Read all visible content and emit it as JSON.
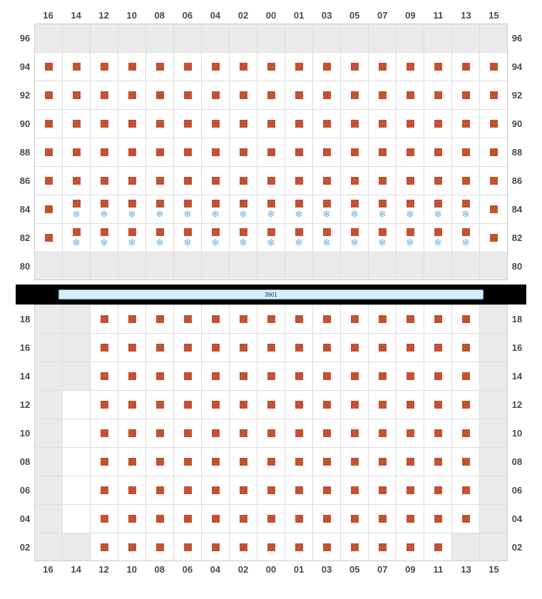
{
  "columns": [
    "16",
    "14",
    "12",
    "10",
    "08",
    "06",
    "04",
    "02",
    "00",
    "01",
    "03",
    "05",
    "07",
    "09",
    "11",
    "13",
    "15"
  ],
  "colors": {
    "seat": "#c15232",
    "snowflake": "#6fb6e6",
    "blank_bg": "#eaeaea",
    "cell_bg": "#ffffff",
    "grid_line": "#dddddd",
    "border": "#cccccc",
    "label_text": "#4a4a4a",
    "separator_bg": "#000000",
    "sep_bar_bg": "#d4eef9",
    "sep_bar_border": "#7ab8d9"
  },
  "typography": {
    "label_fontsize": 13,
    "label_weight": 600
  },
  "separator_label": "3901",
  "upper": {
    "rows": [
      "96",
      "94",
      "92",
      "90",
      "88",
      "86",
      "84",
      "82",
      "80"
    ],
    "cells": {
      "96": [
        "b",
        "b",
        "b",
        "b",
        "b",
        "b",
        "b",
        "b",
        "b",
        "b",
        "b",
        "b",
        "b",
        "b",
        "b",
        "b",
        "b"
      ],
      "94": [
        "s",
        "s",
        "s",
        "s",
        "s",
        "s",
        "s",
        "s",
        "s",
        "s",
        "s",
        "s",
        "s",
        "s",
        "s",
        "s",
        "s"
      ],
      "92": [
        "s",
        "s",
        "s",
        "s",
        "s",
        "s",
        "s",
        "s",
        "s",
        "s",
        "s",
        "s",
        "s",
        "s",
        "s",
        "s",
        "s"
      ],
      "90": [
        "s",
        "s",
        "s",
        "s",
        "s",
        "s",
        "s",
        "s",
        "s",
        "s",
        "s",
        "s",
        "s",
        "s",
        "s",
        "s",
        "s"
      ],
      "88": [
        "s",
        "s",
        "s",
        "s",
        "s",
        "s",
        "s",
        "s",
        "s",
        "s",
        "s",
        "s",
        "s",
        "s",
        "s",
        "s",
        "s"
      ],
      "86": [
        "s",
        "s",
        "s",
        "s",
        "s",
        "s",
        "s",
        "s",
        "s",
        "s",
        "s",
        "s",
        "s",
        "s",
        "s",
        "s",
        "s"
      ],
      "84": [
        "s",
        "sf",
        "sf",
        "sf",
        "sf",
        "sf",
        "sf",
        "sf",
        "sf",
        "sf",
        "sf",
        "sf",
        "sf",
        "sf",
        "sf",
        "sf",
        "s"
      ],
      "82": [
        "s",
        "sf",
        "sf",
        "sf",
        "sf",
        "sf",
        "sf",
        "sf",
        "sf",
        "sf",
        "sf",
        "sf",
        "sf",
        "sf",
        "sf",
        "sf",
        "s"
      ],
      "80": [
        "b",
        "b",
        "b",
        "b",
        "b",
        "b",
        "b",
        "b",
        "b",
        "b",
        "b",
        "b",
        "b",
        "b",
        "b",
        "b",
        "b"
      ]
    }
  },
  "lower": {
    "rows": [
      "18",
      "16",
      "14",
      "12",
      "10",
      "08",
      "06",
      "04",
      "02"
    ],
    "cells": {
      "18": [
        "b",
        "b",
        "s",
        "s",
        "s",
        "s",
        "s",
        "s",
        "s",
        "s",
        "s",
        "s",
        "s",
        "s",
        "s",
        "s",
        "b"
      ],
      "16": [
        "b",
        "b",
        "s",
        "s",
        "s",
        "s",
        "s",
        "s",
        "s",
        "s",
        "s",
        "s",
        "s",
        "s",
        "s",
        "s",
        "b"
      ],
      "14": [
        "b",
        "b",
        "s",
        "s",
        "s",
        "s",
        "s",
        "s",
        "s",
        "s",
        "s",
        "s",
        "s",
        "s",
        "s",
        "s",
        "b"
      ],
      "12": [
        "b",
        "e",
        "s",
        "s",
        "s",
        "s",
        "s",
        "s",
        "s",
        "s",
        "s",
        "s",
        "s",
        "s",
        "s",
        "s",
        "b"
      ],
      "10": [
        "b",
        "e",
        "s",
        "s",
        "s",
        "s",
        "s",
        "s",
        "s",
        "s",
        "s",
        "s",
        "s",
        "s",
        "s",
        "s",
        "b"
      ],
      "08": [
        "b",
        "e",
        "s",
        "s",
        "s",
        "s",
        "s",
        "s",
        "s",
        "s",
        "s",
        "s",
        "s",
        "s",
        "s",
        "s",
        "b"
      ],
      "06": [
        "b",
        "e",
        "s",
        "s",
        "s",
        "s",
        "s",
        "s",
        "s",
        "s",
        "s",
        "s",
        "s",
        "s",
        "s",
        "s",
        "b"
      ],
      "04": [
        "b",
        "e",
        "s",
        "s",
        "s",
        "s",
        "s",
        "s",
        "s",
        "s",
        "s",
        "s",
        "s",
        "s",
        "s",
        "s",
        "b"
      ],
      "02": [
        "b",
        "b",
        "s",
        "s",
        "s",
        "s",
        "s",
        "s",
        "s",
        "s",
        "s",
        "s",
        "s",
        "s",
        "s",
        "b",
        "b"
      ]
    }
  },
  "legend_cell_types": {
    "b": "blank-grey",
    "e": "empty-white",
    "s": "seat-square",
    "sf": "seat-square-with-snowflake"
  }
}
